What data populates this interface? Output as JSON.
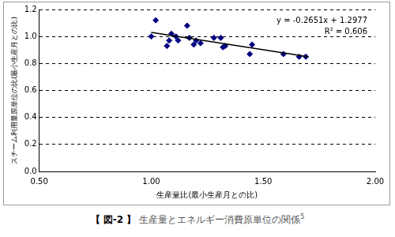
{
  "chart_data": {
    "type": "scatter",
    "caption": {
      "label": "【 図-2 】",
      "text": "生産量とエネルギー消費原単位の関係",
      "ref": "5"
    },
    "x_label": "生産量比(最小生産月との比)",
    "y_label": "スチーム利用量原単位の比(最小生産月との比)",
    "annotations": [
      "y = -0.2651x + 1.2977",
      "R² = 0.606"
    ],
    "xlim": [
      0.5,
      2.0
    ],
    "xticks": [
      {
        "value": 0.5,
        "label": "0.50"
      },
      {
        "value": 1.0,
        "label": "1.00"
      },
      {
        "value": 1.5,
        "label": "1.50"
      },
      {
        "value": 2.0,
        "label": "2.00"
      }
    ],
    "ylim": [
      0,
      1.2
    ],
    "yticks": [
      {
        "value": 0,
        "label": "0.0"
      },
      0.2,
      0.4,
      0.6,
      0.8,
      {
        "value": 1.0,
        "label": "1.0"
      },
      1.2
    ],
    "grid": "y",
    "series": [
      {
        "type": "scatter",
        "marker": "diamond",
        "color": "#000080",
        "x": [
          1.0,
          1.02,
          1.07,
          1.08,
          1.09,
          1.11,
          1.12,
          1.16,
          1.17,
          1.19,
          1.2,
          1.22,
          1.28,
          1.31,
          1.32,
          1.33,
          1.44,
          1.45,
          1.59,
          1.66,
          1.69
        ],
        "values": [
          1.0,
          1.12,
          0.93,
          0.97,
          1.02,
          1.0,
          0.97,
          1.08,
          0.99,
          0.94,
          0.97,
          0.95,
          0.99,
          0.99,
          0.92,
          0.93,
          0.87,
          0.94,
          0.87,
          0.85,
          0.85
        ]
      },
      {
        "type": "line",
        "line_style": "solid",
        "color": "#000000",
        "x": [
          1.0,
          1.7
        ],
        "values": [
          1.03,
          0.85
        ]
      }
    ]
  }
}
